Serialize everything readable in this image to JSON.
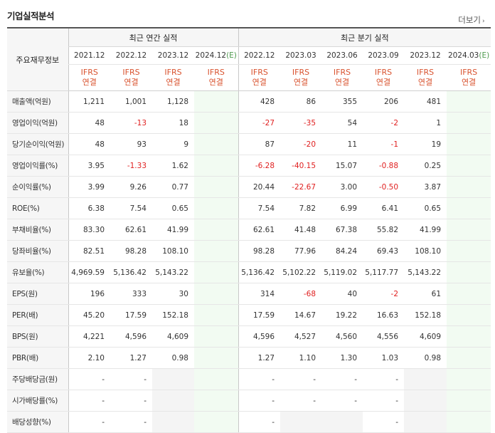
{
  "section_title": "기업실적분석",
  "more_link": "더보기",
  "row_header": "주요재무정보",
  "groups": {
    "annual": "최근 연간 실적",
    "quarter": "최근 분기 실적"
  },
  "periods": [
    "2021.12",
    "2022.12",
    "2023.12",
    "2024.12",
    "2022.12",
    "2023.03",
    "2023.06",
    "2023.09",
    "2023.12",
    "2024.03"
  ],
  "estimate_mark": "(E)",
  "basis": "IFRS",
  "basis_sub": "연결",
  "rows": [
    {
      "label": "매출액(억원)",
      "values": [
        "1,211",
        "1,001",
        "1,128",
        "",
        "428",
        "86",
        "355",
        "206",
        "481",
        ""
      ]
    },
    {
      "label": "영업이익(억원)",
      "values": [
        "48",
        "-13",
        "18",
        "",
        "-27",
        "-35",
        "54",
        "-2",
        "1",
        ""
      ]
    },
    {
      "label": "당기순이익(억원)",
      "values": [
        "48",
        "93",
        "9",
        "",
        "87",
        "-20",
        "11",
        "-1",
        "19",
        ""
      ]
    },
    {
      "label": "영업이익률(%)",
      "values": [
        "3.95",
        "-1.33",
        "1.62",
        "",
        "-6.28",
        "-40.15",
        "15.07",
        "-0.88",
        "0.25",
        ""
      ]
    },
    {
      "label": "순이익률(%)",
      "values": [
        "3.99",
        "9.26",
        "0.77",
        "",
        "20.44",
        "-22.67",
        "3.00",
        "-0.50",
        "3.87",
        ""
      ]
    },
    {
      "label": "ROE(%)",
      "values": [
        "6.38",
        "7.54",
        "0.65",
        "",
        "7.54",
        "7.82",
        "6.99",
        "6.41",
        "0.65",
        ""
      ]
    },
    {
      "label": "부채비율(%)",
      "values": [
        "83.30",
        "62.61",
        "41.99",
        "",
        "62.61",
        "41.48",
        "67.38",
        "55.82",
        "41.99",
        ""
      ]
    },
    {
      "label": "당좌비율(%)",
      "values": [
        "82.51",
        "98.28",
        "108.10",
        "",
        "98.28",
        "77.96",
        "84.24",
        "69.43",
        "108.10",
        ""
      ]
    },
    {
      "label": "유보율(%)",
      "values": [
        "4,969.59",
        "5,136.42",
        "5,143.22",
        "",
        "5,136.42",
        "5,102.22",
        "5,119.02",
        "5,117.77",
        "5,143.22",
        ""
      ]
    },
    {
      "label": "EPS(원)",
      "values": [
        "196",
        "333",
        "30",
        "",
        "314",
        "-68",
        "40",
        "-2",
        "61",
        ""
      ]
    },
    {
      "label": "PER(배)",
      "values": [
        "45.20",
        "17.59",
        "152.18",
        "",
        "17.59",
        "14.67",
        "19.22",
        "16.63",
        "152.18",
        ""
      ]
    },
    {
      "label": "BPS(원)",
      "values": [
        "4,221",
        "4,596",
        "4,609",
        "",
        "4,596",
        "4,527",
        "4,560",
        "4,556",
        "4,609",
        ""
      ]
    },
    {
      "label": "PBR(배)",
      "values": [
        "2.10",
        "1.27",
        "0.98",
        "",
        "1.27",
        "1.10",
        "1.30",
        "1.03",
        "0.98",
        ""
      ]
    },
    {
      "label": "주당배당금(원)",
      "values": [
        "-",
        "-",
        "",
        "",
        "-",
        "-",
        "-",
        "-",
        "",
        ""
      ]
    },
    {
      "label": "시가배당률(%)",
      "values": [
        "-",
        "-",
        "",
        "",
        "-",
        "-",
        "-",
        "-",
        "",
        ""
      ]
    },
    {
      "label": "배당성향(%)",
      "values": [
        "-",
        "-",
        "",
        "",
        "-",
        "",
        "",
        "-",
        "",
        ""
      ]
    }
  ]
}
